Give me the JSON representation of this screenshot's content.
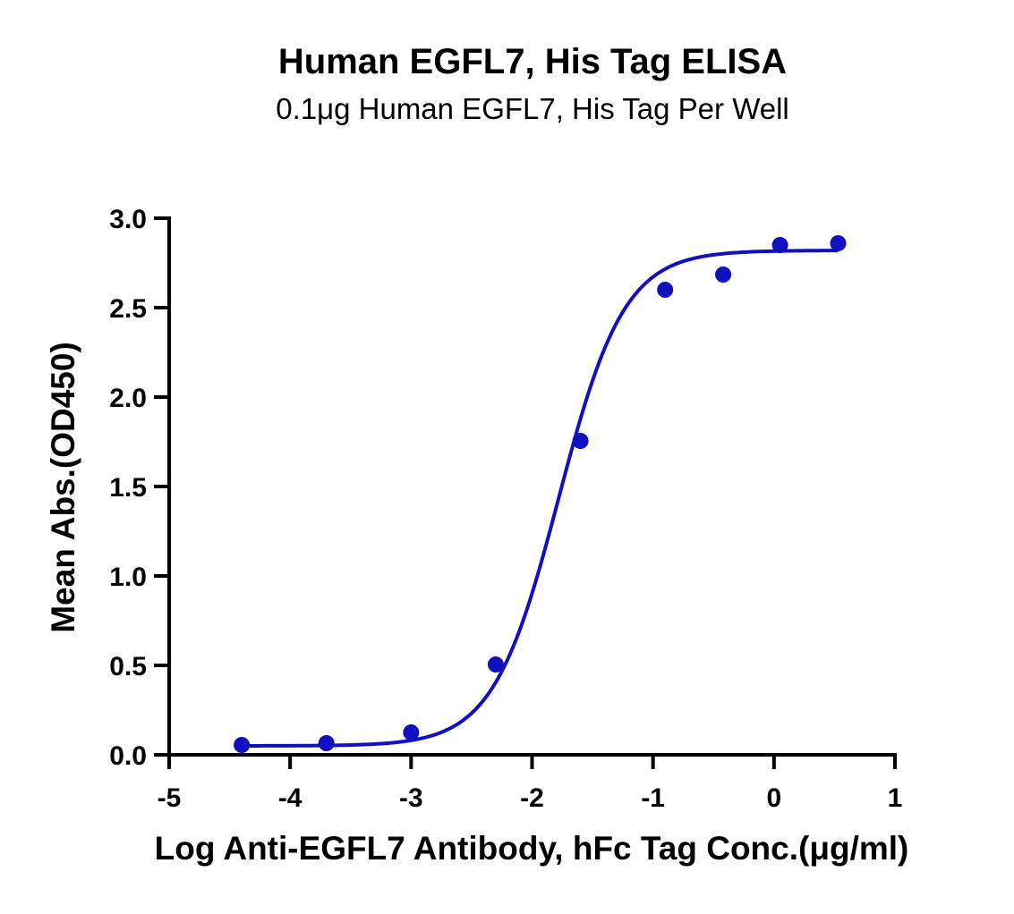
{
  "chart_data": {
    "type": "scatter",
    "title": "Human EGFL7, His Tag ELISA",
    "subtitle": "0.1μg Human EGFL7, His Tag Per Well",
    "xlabel": "Log Anti-EGFL7 Antibody, hFc Tag Conc.(μg/ml)",
    "ylabel": "Mean Abs.(OD450)",
    "xlim": [
      -5,
      1
    ],
    "ylim": [
      0,
      3.0
    ],
    "x_ticks": [
      -5,
      -4,
      -3,
      -2,
      -1,
      0,
      1
    ],
    "x_tick_labels": [
      "-5",
      "-4",
      "-3",
      "-2",
      "-1",
      "0",
      "1"
    ],
    "y_ticks": [
      0,
      0.5,
      1.0,
      1.5,
      2.0,
      2.5,
      3.0
    ],
    "y_tick_labels": [
      "0.0",
      "0.5",
      "1.0",
      "1.5",
      "2.0",
      "2.5",
      "3.0"
    ],
    "grid": false,
    "color": "#1010c0",
    "series": [
      {
        "x": [
          -4.4,
          -3.7,
          -3.0,
          -2.3,
          -1.6,
          -0.9,
          -0.42,
          0.05,
          0.53
        ],
        "y": [
          0.055,
          0.065,
          0.125,
          0.505,
          1.755,
          2.6,
          2.685,
          2.85,
          2.86
        ],
        "fit": {
          "model": "4PL",
          "bottom": 0.05,
          "top": 2.82,
          "logEC50": -1.78,
          "hill": 1.6
        }
      }
    ]
  }
}
